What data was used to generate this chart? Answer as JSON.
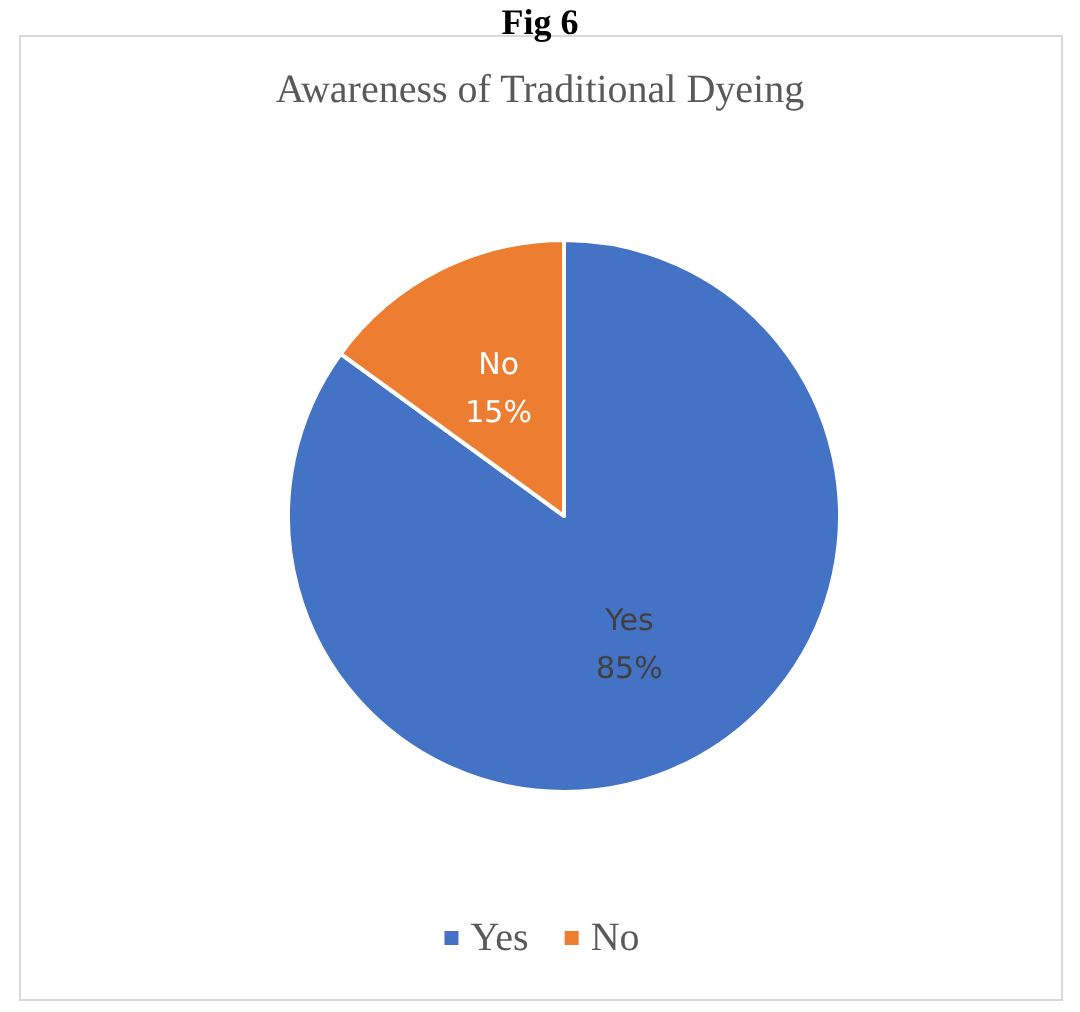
{
  "chart_data": {
    "type": "pie",
    "title": "Awareness of Traditional Dyeing",
    "annotations": [
      "Fig 6"
    ],
    "categories": [
      "Yes",
      "No"
    ],
    "values": [
      85,
      15
    ],
    "value_labels": [
      "85%",
      "15%"
    ],
    "colors": [
      "#4472c4",
      "#ed7d31"
    ],
    "legend": "bottom"
  }
}
